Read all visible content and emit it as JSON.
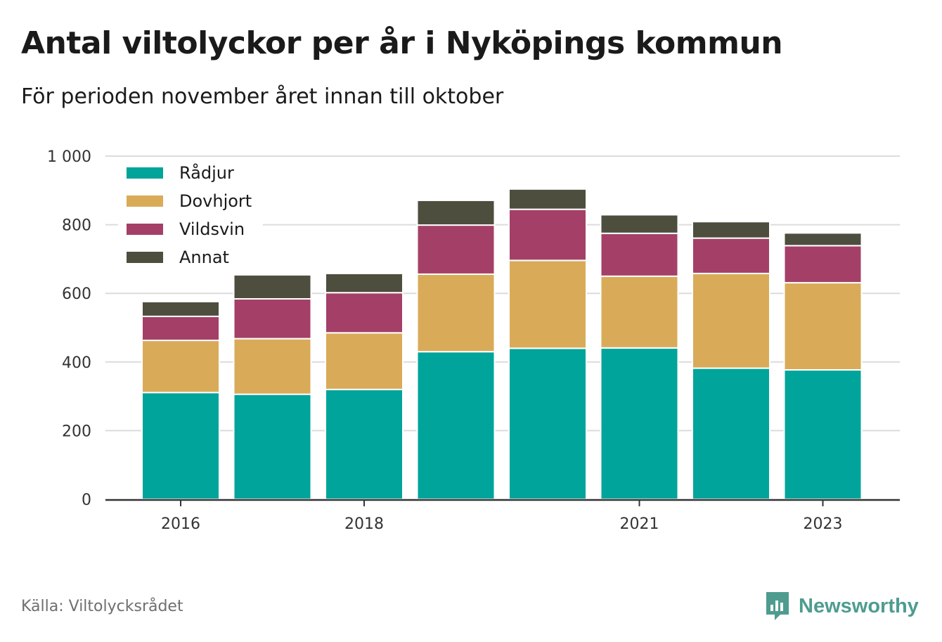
{
  "header": {
    "title": "Antal viltolyckor per år i Nyköpings kommun",
    "subtitle": "För perioden november året innan till oktober"
  },
  "footer": {
    "source": "Källa: Viltolycksrådet",
    "brand": "Newsworthy",
    "brand_icon": "bar-chart-speech-bubble-icon",
    "brand_color": "#4e9c8f"
  },
  "chart_data": {
    "type": "bar",
    "stacked": true,
    "categories": [
      "2016",
      "2017",
      "2018",
      "2019",
      "2020",
      "2021",
      "2022",
      "2023"
    ],
    "x_tick_labels": [
      "2016",
      "",
      "2018",
      "",
      "",
      "2021",
      "",
      "2023"
    ],
    "series": [
      {
        "name": "Rådjur",
        "color": "#00a49a",
        "values": [
          311,
          306,
          320,
          430,
          440,
          441,
          382,
          377
        ]
      },
      {
        "name": "Dovhjort",
        "color": "#d9ab59",
        "values": [
          152,
          162,
          165,
          226,
          256,
          209,
          276,
          254
        ]
      },
      {
        "name": "Vildsvin",
        "color": "#a44068",
        "values": [
          70,
          116,
          117,
          143,
          149,
          125,
          103,
          108
        ]
      },
      {
        "name": "Annat",
        "color": "#4d4e3e",
        "values": [
          43,
          70,
          56,
          72,
          59,
          54,
          48,
          37
        ]
      }
    ],
    "ylim": [
      0,
      1000
    ],
    "y_ticks": [
      0,
      200,
      400,
      600,
      800,
      1000
    ],
    "y_tick_labels": [
      "0",
      "200",
      "400",
      "600",
      "800",
      "1 000"
    ],
    "grid": true,
    "legend": "top-left"
  }
}
